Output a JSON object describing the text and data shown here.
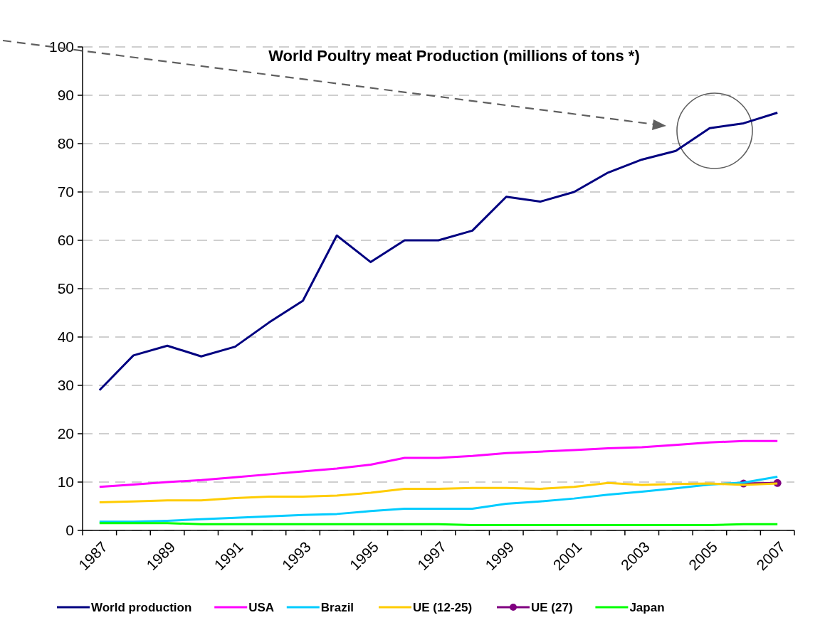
{
  "chart_data": {
    "type": "line",
    "title": "World Poultry meat Production (millions of tons *)",
    "categories": [
      "1987",
      null,
      "1989",
      null,
      "1991",
      null,
      "1993",
      null,
      "1995",
      null,
      "1997",
      null,
      "1999",
      null,
      "2001",
      null,
      "2003",
      null,
      "2005",
      null,
      "2007"
    ],
    "series": [
      {
        "name": "World production",
        "color": "#000080",
        "values": [
          29,
          36.2,
          38.2,
          36,
          38,
          43,
          47.5,
          61,
          55.5,
          60,
          60,
          62,
          69,
          68,
          70,
          74,
          76.7,
          78.5,
          83.2,
          84.2,
          86.4
        ]
      },
      {
        "name": "USA",
        "color": "#ff00ff",
        "values": [
          9,
          9.5,
          10,
          10.4,
          11,
          11.6,
          12.2,
          12.8,
          13.6,
          15,
          15,
          15.4,
          16,
          16.3,
          16.6,
          17,
          17.2,
          17.7,
          18.2,
          18.5,
          18.5
        ]
      },
      {
        "name": "Brazil",
        "color": "#00ccff",
        "values": [
          1.8,
          1.8,
          2,
          2.3,
          2.6,
          2.9,
          3.2,
          3.4,
          4,
          4.5,
          4.5,
          4.5,
          5.5,
          6,
          6.6,
          7.4,
          8,
          8.7,
          9.5,
          9.9,
          11.1
        ]
      },
      {
        "name": "UE (12-25)",
        "color": "#ffcc00",
        "values": [
          5.8,
          6,
          6.2,
          6.2,
          6.7,
          7,
          7,
          7.2,
          7.8,
          8.6,
          8.6,
          8.8,
          8.8,
          8.6,
          9,
          9.8,
          9.4,
          9.6,
          9.7,
          9.4,
          9.7
        ]
      },
      {
        "name": "UE (27)",
        "color": "#800080",
        "marker": "circle",
        "values": [
          null,
          null,
          null,
          null,
          null,
          null,
          null,
          null,
          null,
          null,
          null,
          null,
          null,
          null,
          null,
          null,
          null,
          null,
          null,
          9.7,
          9.8
        ]
      },
      {
        "name": "Japan",
        "color": "#00ff00",
        "values": [
          1.5,
          1.5,
          1.5,
          1.3,
          1.3,
          1.3,
          1.3,
          1.3,
          1.3,
          1.3,
          1.3,
          1.1,
          1.1,
          1.1,
          1.1,
          1.1,
          1.1,
          1.1,
          1.1,
          1.3,
          1.3
        ]
      }
    ],
    "ylim": [
      0,
      100
    ],
    "yticks": [
      0,
      10,
      20,
      30,
      40,
      50,
      60,
      70,
      80,
      90,
      100
    ],
    "grid": "y",
    "legend": "bottom"
  }
}
